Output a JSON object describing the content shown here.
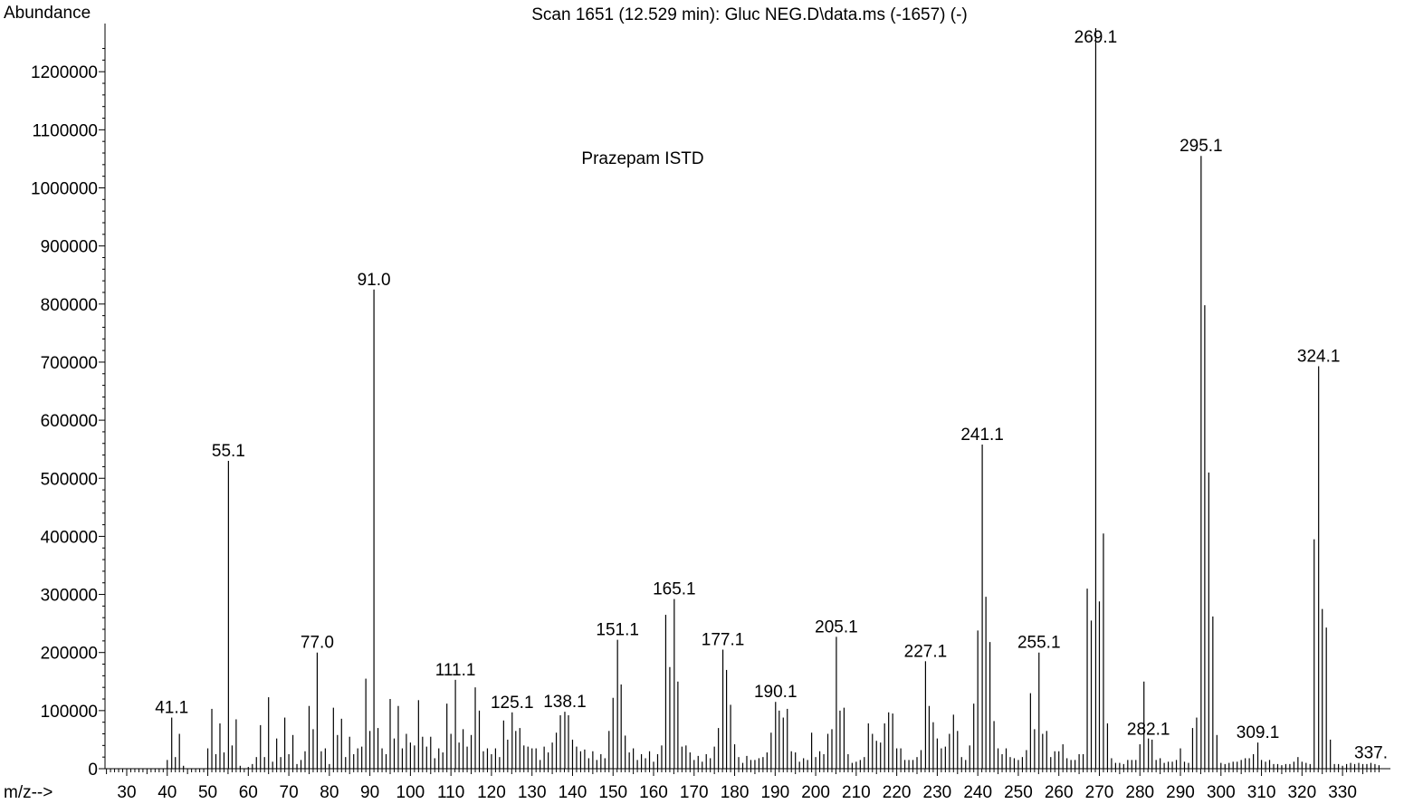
{
  "chart_data": {
    "type": "bar",
    "title": "Scan 1651 (12.529 min): Gluc NEG.D\\data.ms (-1657) (-)",
    "ylabel": "Abundance",
    "xlabel": "m/z-->",
    "annotation": "Prazepam ISTD",
    "xlim": [
      25,
      340
    ],
    "ylim": [
      0,
      1280000
    ],
    "x_ticks": [
      "30",
      "40",
      "50",
      "60",
      "70",
      "80",
      "90",
      "100",
      "110",
      "120",
      "130",
      "140",
      "150",
      "160",
      "170",
      "180",
      "190",
      "200",
      "210",
      "220",
      "230",
      "240",
      "250",
      "260",
      "270",
      "280",
      "290",
      "300",
      "310",
      "320",
      "330"
    ],
    "y_ticks": [
      "0",
      "100000",
      "200000",
      "300000",
      "400000",
      "500000",
      "600000",
      "700000",
      "800000",
      "900000",
      "1000000",
      "1100000",
      "1200000"
    ],
    "peak_labels": [
      {
        "mz": 41.1,
        "text": "41.1"
      },
      {
        "mz": 55.1,
        "text": "55.1"
      },
      {
        "mz": 77.0,
        "text": "77.0"
      },
      {
        "mz": 91.0,
        "text": "91.0"
      },
      {
        "mz": 111.1,
        "text": "111.1"
      },
      {
        "mz": 125.1,
        "text": "125.1"
      },
      {
        "mz": 138.1,
        "text": "138.1"
      },
      {
        "mz": 151.1,
        "text": "151.1"
      },
      {
        "mz": 165.1,
        "text": "165.1"
      },
      {
        "mz": 177.1,
        "text": "177.1"
      },
      {
        "mz": 190.1,
        "text": "190.1"
      },
      {
        "mz": 205.1,
        "text": "205.1"
      },
      {
        "mz": 227.1,
        "text": "227.1"
      },
      {
        "mz": 241.1,
        "text": "241.1"
      },
      {
        "mz": 255.1,
        "text": "255.1"
      },
      {
        "mz": 269.1,
        "text": "269.1"
      },
      {
        "mz": 282.1,
        "text": "282.1"
      },
      {
        "mz": 295.1,
        "text": "295.1"
      },
      {
        "mz": 309.1,
        "text": "309.1"
      },
      {
        "mz": 324.1,
        "text": "324.1"
      },
      {
        "mz": 337.0,
        "text": "337."
      }
    ],
    "peaks": [
      [
        40,
        15000
      ],
      [
        41.1,
        88000
      ],
      [
        42,
        20000
      ],
      [
        43,
        60000
      ],
      [
        44,
        5000
      ],
      [
        50,
        35000
      ],
      [
        51,
        103000
      ],
      [
        52,
        25000
      ],
      [
        53,
        78000
      ],
      [
        54,
        28000
      ],
      [
        55.1,
        530000
      ],
      [
        56,
        40000
      ],
      [
        57,
        85000
      ],
      [
        58,
        5000
      ],
      [
        60,
        3000
      ],
      [
        61,
        8000
      ],
      [
        62,
        20000
      ],
      [
        63,
        75000
      ],
      [
        64,
        20000
      ],
      [
        65,
        123000
      ],
      [
        66,
        12000
      ],
      [
        67,
        52000
      ],
      [
        68,
        20000
      ],
      [
        69,
        88000
      ],
      [
        70,
        25000
      ],
      [
        71,
        58000
      ],
      [
        72,
        8000
      ],
      [
        73,
        15000
      ],
      [
        74,
        30000
      ],
      [
        75,
        108000
      ],
      [
        76,
        68000
      ],
      [
        77.0,
        200000
      ],
      [
        78,
        30000
      ],
      [
        79,
        35000
      ],
      [
        80,
        8000
      ],
      [
        81,
        105000
      ],
      [
        82,
        58000
      ],
      [
        83,
        86000
      ],
      [
        84,
        20000
      ],
      [
        85,
        55000
      ],
      [
        86,
        25000
      ],
      [
        87,
        35000
      ],
      [
        88,
        38000
      ],
      [
        89,
        155000
      ],
      [
        90,
        65000
      ],
      [
        91.0,
        825000
      ],
      [
        92,
        70000
      ],
      [
        93,
        35000
      ],
      [
        94,
        25000
      ],
      [
        95,
        120000
      ],
      [
        96,
        52000
      ],
      [
        97,
        108000
      ],
      [
        98,
        35000
      ],
      [
        99,
        60000
      ],
      [
        100,
        45000
      ],
      [
        101,
        40000
      ],
      [
        102,
        118000
      ],
      [
        103,
        55000
      ],
      [
        104,
        38000
      ],
      [
        105,
        55000
      ],
      [
        106,
        18000
      ],
      [
        107,
        35000
      ],
      [
        108,
        28000
      ],
      [
        109,
        112000
      ],
      [
        110,
        60000
      ],
      [
        111.1,
        153000
      ],
      [
        112,
        45000
      ],
      [
        113,
        68000
      ],
      [
        114,
        38000
      ],
      [
        115,
        58000
      ],
      [
        116,
        140000
      ],
      [
        117,
        100000
      ],
      [
        118,
        30000
      ],
      [
        119,
        35000
      ],
      [
        120,
        25000
      ],
      [
        121,
        35000
      ],
      [
        122,
        20000
      ],
      [
        123,
        83000
      ],
      [
        124,
        50000
      ],
      [
        125.1,
        97000
      ],
      [
        126,
        65000
      ],
      [
        127,
        70000
      ],
      [
        128,
        40000
      ],
      [
        129,
        38000
      ],
      [
        130,
        35000
      ],
      [
        131,
        35000
      ],
      [
        132,
        15000
      ],
      [
        133,
        38000
      ],
      [
        134,
        28000
      ],
      [
        135,
        45000
      ],
      [
        136,
        62000
      ],
      [
        137,
        92000
      ],
      [
        138.1,
        98000
      ],
      [
        139,
        92000
      ],
      [
        140,
        50000
      ],
      [
        141,
        38000
      ],
      [
        142,
        30000
      ],
      [
        143,
        33000
      ],
      [
        144,
        18000
      ],
      [
        145,
        30000
      ],
      [
        146,
        15000
      ],
      [
        147,
        25000
      ],
      [
        148,
        18000
      ],
      [
        149,
        65000
      ],
      [
        150,
        122000
      ],
      [
        151.1,
        222000
      ],
      [
        152,
        145000
      ],
      [
        153,
        57000
      ],
      [
        154,
        28000
      ],
      [
        155,
        35000
      ],
      [
        156,
        15000
      ],
      [
        157,
        25000
      ],
      [
        158,
        18000
      ],
      [
        159,
        30000
      ],
      [
        160,
        12000
      ],
      [
        161,
        25000
      ],
      [
        162,
        40000
      ],
      [
        163,
        265000
      ],
      [
        164,
        175000
      ],
      [
        165.1,
        292000
      ],
      [
        166,
        150000
      ],
      [
        167,
        38000
      ],
      [
        168,
        40000
      ],
      [
        169,
        28000
      ],
      [
        170,
        15000
      ],
      [
        171,
        22000
      ],
      [
        172,
        12000
      ],
      [
        173,
        25000
      ],
      [
        174,
        18000
      ],
      [
        175,
        38000
      ],
      [
        176,
        70000
      ],
      [
        177.1,
        205000
      ],
      [
        178,
        170000
      ],
      [
        179,
        110000
      ],
      [
        180,
        42000
      ],
      [
        181,
        20000
      ],
      [
        182,
        10000
      ],
      [
        183,
        22000
      ],
      [
        184,
        15000
      ],
      [
        185,
        15000
      ],
      [
        186,
        18000
      ],
      [
        187,
        20000
      ],
      [
        188,
        28000
      ],
      [
        189,
        62000
      ],
      [
        190.1,
        115000
      ],
      [
        191,
        100000
      ],
      [
        192,
        88000
      ],
      [
        193,
        103000
      ],
      [
        194,
        30000
      ],
      [
        195,
        28000
      ],
      [
        196,
        12000
      ],
      [
        197,
        18000
      ],
      [
        198,
        15000
      ],
      [
        199,
        62000
      ],
      [
        200,
        20000
      ],
      [
        201,
        30000
      ],
      [
        202,
        25000
      ],
      [
        203,
        60000
      ],
      [
        204,
        68000
      ],
      [
        205.1,
        227000
      ],
      [
        206,
        100000
      ],
      [
        207,
        105000
      ],
      [
        208,
        25000
      ],
      [
        209,
        10000
      ],
      [
        210,
        12000
      ],
      [
        211,
        15000
      ],
      [
        212,
        20000
      ],
      [
        213,
        78000
      ],
      [
        214,
        60000
      ],
      [
        215,
        48000
      ],
      [
        216,
        45000
      ],
      [
        217,
        78000
      ],
      [
        218,
        97000
      ],
      [
        219,
        95000
      ],
      [
        220,
        35000
      ],
      [
        221,
        35000
      ],
      [
        222,
        15000
      ],
      [
        223,
        15000
      ],
      [
        224,
        15000
      ],
      [
        225,
        20000
      ],
      [
        226,
        32000
      ],
      [
        227.1,
        185000
      ],
      [
        228,
        108000
      ],
      [
        229,
        80000
      ],
      [
        230,
        52000
      ],
      [
        231,
        35000
      ],
      [
        232,
        38000
      ],
      [
        233,
        60000
      ],
      [
        234,
        93000
      ],
      [
        235,
        65000
      ],
      [
        236,
        20000
      ],
      [
        237,
        15000
      ],
      [
        238,
        40000
      ],
      [
        239,
        112000
      ],
      [
        240,
        238000
      ],
      [
        241.1,
        558000
      ],
      [
        242,
        296000
      ],
      [
        243,
        218000
      ],
      [
        244,
        82000
      ],
      [
        245,
        35000
      ],
      [
        246,
        25000
      ],
      [
        247,
        35000
      ],
      [
        248,
        20000
      ],
      [
        249,
        18000
      ],
      [
        250,
        15000
      ],
      [
        251,
        20000
      ],
      [
        252,
        32000
      ],
      [
        253,
        130000
      ],
      [
        254,
        68000
      ],
      [
        255.1,
        200000
      ],
      [
        256,
        60000
      ],
      [
        257,
        65000
      ],
      [
        258,
        20000
      ],
      [
        259,
        30000
      ],
      [
        260,
        30000
      ],
      [
        261,
        42000
      ],
      [
        262,
        18000
      ],
      [
        263,
        15000
      ],
      [
        264,
        15000
      ],
      [
        265,
        25000
      ],
      [
        266,
        25000
      ],
      [
        267,
        310000
      ],
      [
        268,
        255000
      ],
      [
        269.1,
        1275000
      ],
      [
        270,
        288000
      ],
      [
        271,
        405000
      ],
      [
        272,
        78000
      ],
      [
        273,
        18000
      ],
      [
        274,
        10000
      ],
      [
        275,
        10000
      ],
      [
        276,
        8000
      ],
      [
        277,
        15000
      ],
      [
        278,
        15000
      ],
      [
        279,
        15000
      ],
      [
        280,
        42000
      ],
      [
        281,
        150000
      ],
      [
        282.1,
        52000
      ],
      [
        283,
        50000
      ],
      [
        284,
        15000
      ],
      [
        285,
        18000
      ],
      [
        286,
        10000
      ],
      [
        287,
        12000
      ],
      [
        288,
        12000
      ],
      [
        289,
        15000
      ],
      [
        290,
        35000
      ],
      [
        291,
        12000
      ],
      [
        292,
        10000
      ],
      [
        293,
        70000
      ],
      [
        294,
        88000
      ],
      [
        295.1,
        1055000
      ],
      [
        296,
        798000
      ],
      [
        297,
        510000
      ],
      [
        298,
        262000
      ],
      [
        299,
        58000
      ],
      [
        300,
        10000
      ],
      [
        301,
        8000
      ],
      [
        302,
        10000
      ],
      [
        303,
        12000
      ],
      [
        304,
        12000
      ],
      [
        305,
        15000
      ],
      [
        306,
        18000
      ],
      [
        307,
        18000
      ],
      [
        308,
        25000
      ],
      [
        309.1,
        45000
      ],
      [
        310,
        15000
      ],
      [
        311,
        12000
      ],
      [
        312,
        15000
      ],
      [
        313,
        8000
      ],
      [
        314,
        8000
      ],
      [
        315,
        6000
      ],
      [
        316,
        8000
      ],
      [
        317,
        8000
      ],
      [
        318,
        12000
      ],
      [
        319,
        20000
      ],
      [
        320,
        12000
      ],
      [
        321,
        10000
      ],
      [
        322,
        8000
      ],
      [
        323,
        395000
      ],
      [
        324.1,
        693000
      ],
      [
        325,
        275000
      ],
      [
        326,
        243000
      ],
      [
        327,
        50000
      ],
      [
        328,
        8000
      ],
      [
        329,
        8000
      ],
      [
        330,
        5000
      ],
      [
        331,
        8000
      ],
      [
        332,
        10000
      ],
      [
        333,
        8000
      ],
      [
        334,
        10000
      ],
      [
        335,
        8000
      ],
      [
        336,
        8000
      ],
      [
        337.0,
        10000
      ],
      [
        338,
        8000
      ],
      [
        339,
        6000
      ]
    ]
  }
}
